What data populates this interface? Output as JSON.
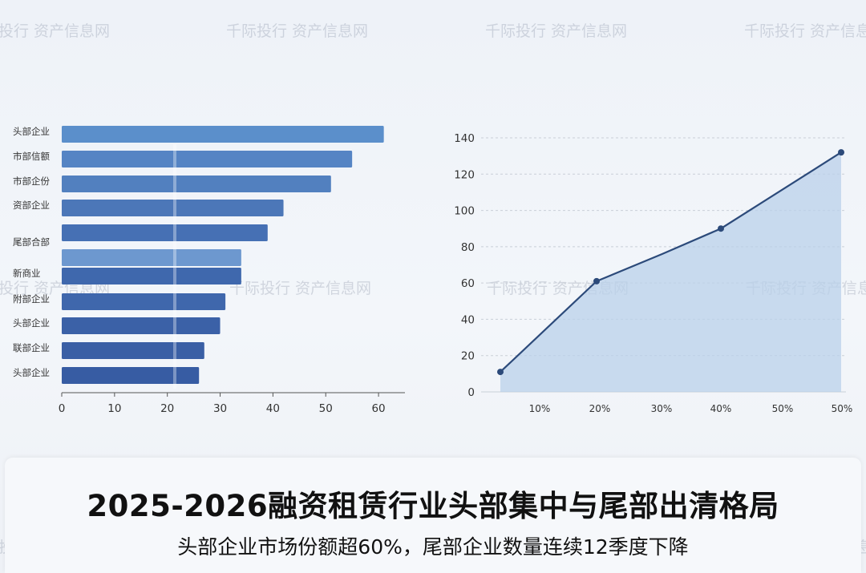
{
  "watermark_text": "千际投行 资产信息网",
  "chart_data": [
    {
      "type": "bar",
      "orientation": "horizontal",
      "categories": [
        "头部企业",
        "市部信额",
        "市部企份",
        "资部企业",
        "尾部合部",
        "",
        "新商业",
        "附部企业",
        "头部企业",
        "联部企业",
        "头部企业"
      ],
      "values": [
        61,
        55,
        51,
        42,
        39,
        34,
        34,
        31,
        30,
        27,
        26
      ],
      "xlim": [
        0,
        65
      ],
      "x_ticks": [
        0,
        10,
        20,
        30,
        40,
        50,
        60
      ],
      "colors": [
        "#5b8fcb",
        "#5584c4",
        "#5280bf",
        "#4c77b8",
        "#4670b4",
        "#6d98cf",
        "#3f68ad",
        "#3f67ac",
        "#3b61a7",
        "#3a5fa5",
        "#375ca3"
      ]
    },
    {
      "type": "area",
      "x": [
        "",
        "20%",
        "30%",
        "40%",
        "50%"
      ],
      "y": [
        11,
        61,
        76,
        90,
        132
      ],
      "markers": [
        true,
        true,
        false,
        true,
        true
      ],
      "x_tick_labels": [
        "10%",
        "20%",
        "30%",
        "40%",
        "50%",
        "50%"
      ],
      "ylim": [
        0,
        140
      ],
      "y_ticks": [
        0,
        20,
        40,
        60,
        80,
        100,
        120,
        140
      ],
      "line_color": "#2c4a7a",
      "fill_color": "#b9d0ea"
    }
  ],
  "caption": {
    "title": "2025-2026融资租赁行业头部集中与尾部出清格局",
    "subtitle": "头部企业市场份额超60%，尾部企业数量连续12季度下降"
  }
}
